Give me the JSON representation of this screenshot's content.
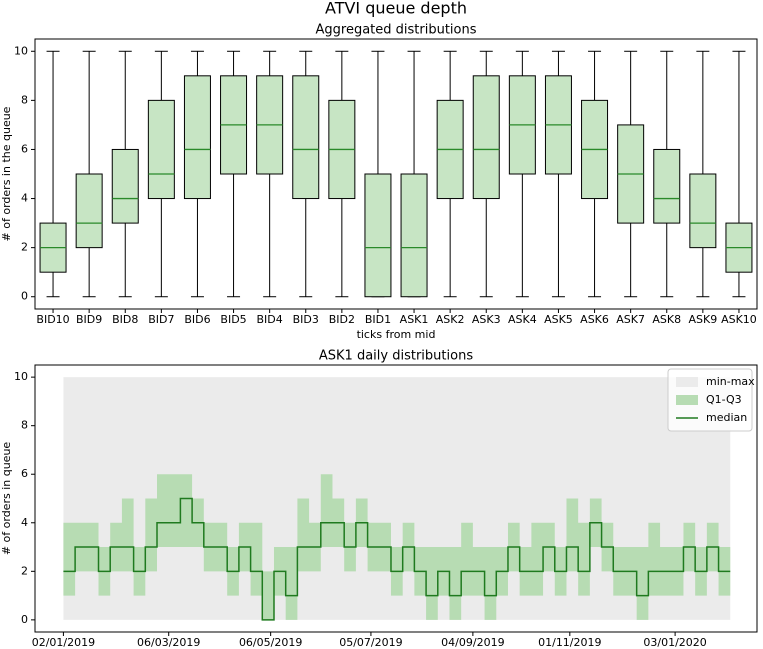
{
  "title": "ATVI queue depth",
  "chart_data": [
    {
      "type": "box",
      "title": "Aggregated distributions",
      "xlabel": "ticks from mid",
      "ylabel": "# of orders in the queue",
      "categories": [
        "BID10",
        "BID9",
        "BID8",
        "BID7",
        "BID6",
        "BID5",
        "BID4",
        "BID3",
        "BID2",
        "BID1",
        "ASK1",
        "ASK2",
        "ASK3",
        "ASK4",
        "ASK5",
        "ASK6",
        "ASK7",
        "ASK8",
        "ASK9",
        "ASK10"
      ],
      "min": [
        0,
        0,
        0,
        0,
        0,
        0,
        0,
        0,
        0,
        0,
        0,
        0,
        0,
        0,
        0,
        0,
        0,
        0,
        0,
        0
      ],
      "q1": [
        1,
        2,
        3,
        4,
        4,
        5,
        5,
        4,
        4,
        0,
        0,
        4,
        4,
        5,
        5,
        4,
        3,
        3,
        2,
        1
      ],
      "median": [
        2,
        3,
        4,
        5,
        6,
        7,
        7,
        6,
        6,
        2,
        2,
        6,
        6,
        7,
        7,
        6,
        5,
        4,
        3,
        2
      ],
      "q3": [
        3,
        5,
        6,
        8,
        9,
        9,
        9,
        9,
        8,
        5,
        5,
        8,
        9,
        9,
        9,
        8,
        7,
        6,
        5,
        3
      ],
      "max": [
        10,
        10,
        10,
        10,
        10,
        10,
        10,
        10,
        10,
        10,
        10,
        10,
        10,
        10,
        10,
        10,
        10,
        10,
        10,
        10
      ],
      "color": "#c7e5c4",
      "median_color": "#2a8a2a",
      "ylim": [
        -0.5,
        10.5
      ],
      "yticks": [
        0,
        2,
        4,
        6,
        8,
        10
      ]
    },
    {
      "type": "band-step",
      "title": "ASK1 daily distributions",
      "ylabel": "# of orders in queue",
      "x": [
        "02/01/2019",
        "09/01/2019",
        "16/01/2019",
        "23/01/2019",
        "30/01/2019",
        "06/02/2019",
        "13/02/2019",
        "20/02/2019",
        "27/02/2019",
        "06/03/2019",
        "13/03/2019",
        "20/03/2019",
        "27/03/2019",
        "03/04/2019",
        "10/04/2019",
        "17/04/2019",
        "24/04/2019",
        "01/05/2019",
        "08/05/2019",
        "15/05/2019",
        "22/05/2019",
        "29/05/2019",
        "05/06/2019",
        "12/06/2019",
        "19/06/2019",
        "26/06/2019",
        "03/07/2019",
        "10/07/2019",
        "17/07/2019",
        "24/07/2019",
        "31/07/2019",
        "07/08/2019",
        "14/08/2019",
        "21/08/2019",
        "28/08/2019",
        "04/09/2019",
        "11/09/2019",
        "18/09/2019",
        "25/09/2019",
        "02/10/2019",
        "09/10/2019",
        "16/10/2019",
        "23/10/2019",
        "30/10/2019",
        "06/11/2019",
        "13/11/2019",
        "20/11/2019",
        "27/11/2019",
        "04/12/2019",
        "11/12/2019",
        "18/12/2019",
        "25/12/2019",
        "01/01/2020",
        "08/01/2020",
        "15/01/2020",
        "22/01/2020",
        "29/01/2020",
        "05/02/2020"
      ],
      "series": [
        {
          "name": "min-max",
          "color": "#ebebeb",
          "low": [
            0,
            0,
            0,
            0,
            0,
            0,
            0,
            0,
            0,
            0,
            0,
            0,
            0,
            0,
            0,
            0,
            0,
            0,
            0,
            0,
            0,
            0,
            0,
            0,
            0,
            0,
            0,
            0,
            0,
            0,
            0,
            0,
            0,
            0,
            0,
            0,
            0,
            0,
            0,
            0,
            0,
            0,
            0,
            0,
            0,
            0,
            0,
            0,
            0,
            0,
            0,
            0,
            0,
            0,
            0,
            0,
            0,
            0
          ],
          "high": [
            10,
            10,
            10,
            10,
            10,
            10,
            10,
            10,
            10,
            10,
            10,
            10,
            10,
            10,
            10,
            10,
            10,
            10,
            10,
            10,
            10,
            10,
            10,
            10,
            10,
            10,
            10,
            10,
            10,
            10,
            10,
            10,
            10,
            10,
            10,
            10,
            10,
            10,
            10,
            10,
            10,
            10,
            10,
            10,
            10,
            10,
            10,
            10,
            10,
            10,
            10,
            10,
            10,
            10,
            10,
            10,
            10,
            10
          ]
        },
        {
          "name": "Q1-Q3",
          "color": "#b7dcb3",
          "low": [
            1,
            2,
            2,
            1,
            2,
            2,
            1,
            2,
            3,
            3,
            3,
            3,
            2,
            2,
            1,
            2,
            1,
            0,
            1,
            0,
            2,
            2,
            3,
            3,
            2,
            3,
            2,
            2,
            1,
            2,
            1,
            0,
            1,
            0,
            1,
            1,
            0,
            1,
            2,
            1,
            1,
            2,
            1,
            2,
            1,
            3,
            2,
            1,
            1,
            0,
            1,
            1,
            1,
            2,
            1,
            2,
            1,
            1
          ],
          "high": [
            4,
            4,
            4,
            3,
            4,
            5,
            3,
            5,
            6,
            6,
            6,
            5,
            4,
            4,
            3,
            4,
            4,
            2,
            3,
            3,
            5,
            4,
            6,
            5,
            4,
            5,
            4,
            4,
            3,
            4,
            3,
            3,
            3,
            3,
            4,
            3,
            3,
            3,
            4,
            3,
            4,
            4,
            3,
            5,
            4,
            5,
            4,
            3,
            3,
            3,
            4,
            3,
            3,
            4,
            3,
            4,
            3,
            3
          ]
        },
        {
          "name": "median",
          "color": "#1f7a1f",
          "values": [
            2,
            3,
            3,
            2,
            3,
            3,
            2,
            3,
            4,
            4,
            5,
            4,
            3,
            3,
            2,
            3,
            2,
            0,
            2,
            1,
            3,
            3,
            4,
            4,
            3,
            4,
            3,
            3,
            2,
            3,
            2,
            1,
            2,
            1,
            2,
            2,
            1,
            2,
            3,
            2,
            2,
            3,
            2,
            3,
            2,
            4,
            3,
            2,
            2,
            1,
            2,
            2,
            2,
            3,
            2,
            3,
            2,
            2
          ]
        }
      ],
      "xlim": [
        "16/12/2018",
        "21/02/2020"
      ],
      "xticks": [
        "02/01/2019",
        "06/03/2019",
        "06/05/2019",
        "05/07/2019",
        "04/09/2019",
        "01/11/2019",
        "03/01/2020"
      ],
      "ylim": [
        -0.5,
        10.5
      ],
      "yticks": [
        0,
        2,
        4,
        6,
        8,
        10
      ],
      "legend": "upper right"
    }
  ]
}
